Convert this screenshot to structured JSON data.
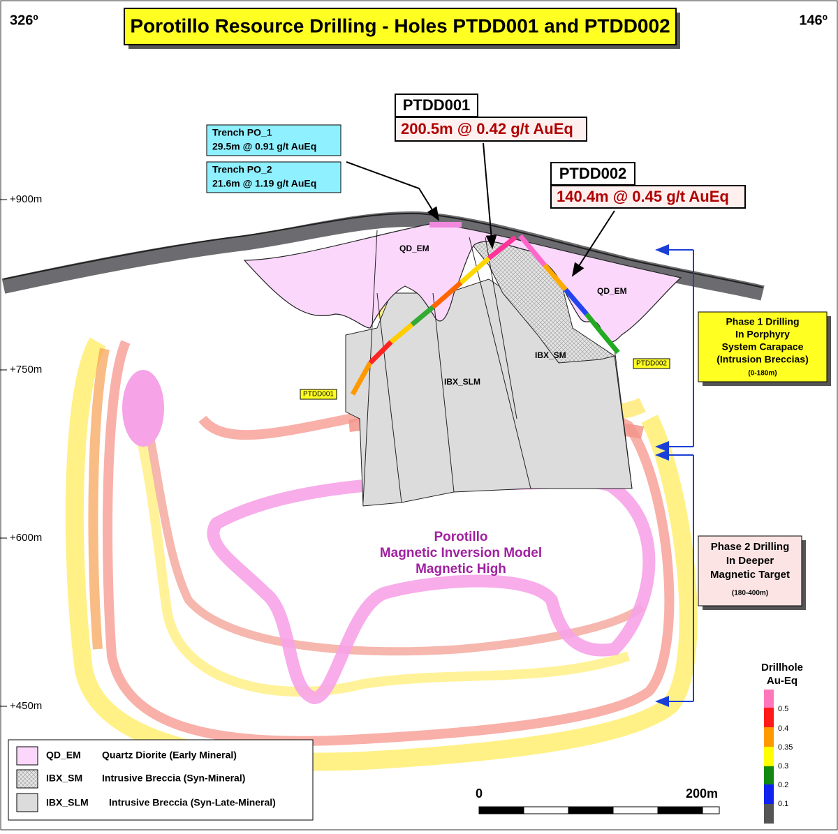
{
  "header": {
    "title": "Porotillo Resource Drilling - Holes PTDD001 and PTDD002",
    "left_bearing": "326º",
    "right_bearing": "146º"
  },
  "elevations": [
    "+900m",
    "+750m",
    "+600m",
    "+450m"
  ],
  "trenches": [
    {
      "name": "Trench PO_1",
      "result": "29.5m @ 0.91 g/t AuEq"
    },
    {
      "name": "Trench PO_2",
      "result": "21.6m @ 1.19 g/t AuEq"
    }
  ],
  "holes": [
    {
      "name": "PTDD001",
      "result": "200.5m @ 0.42 g/t AuEq",
      "tag": "PTDD001"
    },
    {
      "name": "PTDD002",
      "result": "140.4m @ 0.45 g/t AuEq",
      "tag": "PTDD002"
    }
  ],
  "units": {
    "qd_left": "QD_EM",
    "qd_right": "QD_EM",
    "ibx_sm": "IBX_SM",
    "ibx_slm": "IBX_SLM"
  },
  "magnetic": [
    "Porotillo",
    "Magnetic Inversion Model",
    "Magnetic High"
  ],
  "phase1": [
    "Phase 1 Drilling",
    "In Porphyry",
    "System Carapace",
    "(Intrusion Breccias)",
    "(0-180m)"
  ],
  "phase2": [
    "Phase 2 Drilling",
    "In Deeper",
    "Magnetic Target",
    "(180-400m)"
  ],
  "legend": [
    {
      "code": "QD_EM",
      "description": "Quartz Diorite (Early Mineral)"
    },
    {
      "code": "IBX_SM",
      "description": "Intrusive Breccia (Syn-Mineral)"
    },
    {
      "code": "IBX_SLM",
      "description": "Intrusive Breccia (Syn-Late-Mineral)"
    }
  ],
  "scale_bar": [
    "0",
    "200m"
  ],
  "color_scale": {
    "title": [
      "Drillhole",
      "Au-Eq"
    ],
    "labels": [
      0.5,
      0.4,
      0.35,
      0.3,
      0.2,
      0.1
    ]
  }
}
